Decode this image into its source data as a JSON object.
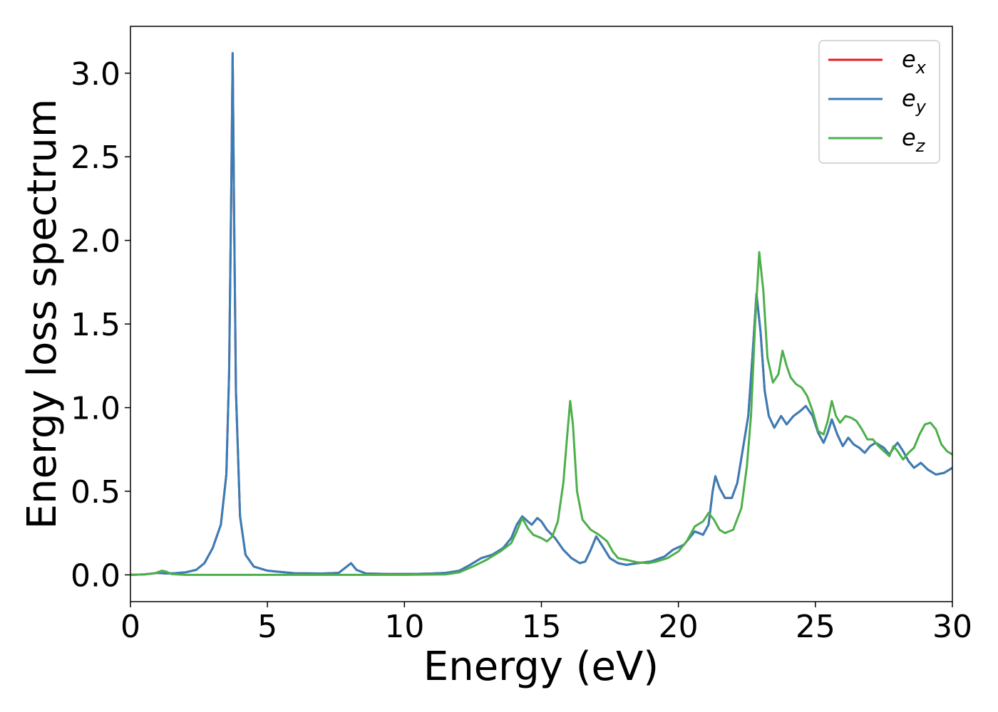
{
  "chart_data": {
    "type": "line",
    "title": "",
    "xlabel": "Energy (eV)",
    "ylabel": "Energy loss spectrum",
    "xlim": [
      0,
      30
    ],
    "ylim": [
      -0.16,
      3.28
    ],
    "xticks": [
      0,
      5,
      10,
      15,
      20,
      25,
      30
    ],
    "xtick_labels": [
      "0",
      "5",
      "10",
      "15",
      "20",
      "25",
      "30"
    ],
    "yticks": [
      0.0,
      0.5,
      1.0,
      1.5,
      2.0,
      2.5,
      3.0
    ],
    "ytick_labels": [
      "0.0",
      "0.5",
      "1.0",
      "1.5",
      "2.0",
      "2.5",
      "3.0"
    ],
    "grid": false,
    "legend_position": "top-right",
    "series": [
      {
        "name": "e_x",
        "legend_base": "e",
        "legend_sub": "x",
        "color": "#e41a1c",
        "points": [
          [
            0,
            0
          ],
          [
            0.5,
            0.003
          ],
          [
            1.0,
            0.012
          ],
          [
            1.3,
            0.008
          ],
          [
            1.6,
            0.01
          ],
          [
            2.0,
            0.015
          ],
          [
            2.4,
            0.03
          ],
          [
            2.7,
            0.07
          ],
          [
            3.0,
            0.16
          ],
          [
            3.3,
            0.3
          ],
          [
            3.5,
            0.6
          ],
          [
            3.6,
            1.2
          ],
          [
            3.68,
            2.3
          ],
          [
            3.73,
            3.12
          ],
          [
            3.78,
            2.2
          ],
          [
            3.85,
            1.1
          ],
          [
            4.0,
            0.35
          ],
          [
            4.2,
            0.12
          ],
          [
            4.5,
            0.05
          ],
          [
            5.0,
            0.025
          ],
          [
            6.0,
            0.01
          ],
          [
            7.0,
            0.008
          ],
          [
            7.6,
            0.012
          ],
          [
            7.9,
            0.05
          ],
          [
            8.05,
            0.07
          ],
          [
            8.25,
            0.03
          ],
          [
            8.6,
            0.008
          ],
          [
            9.5,
            0.005
          ],
          [
            10.5,
            0.006
          ],
          [
            11.0,
            0.008
          ],
          [
            11.5,
            0.012
          ],
          [
            12.0,
            0.025
          ],
          [
            12.4,
            0.06
          ],
          [
            12.8,
            0.1
          ],
          [
            13.2,
            0.12
          ],
          [
            13.6,
            0.16
          ],
          [
            13.9,
            0.22
          ],
          [
            14.1,
            0.3
          ],
          [
            14.3,
            0.35
          ],
          [
            14.5,
            0.32
          ],
          [
            14.65,
            0.3
          ],
          [
            14.85,
            0.34
          ],
          [
            15.0,
            0.32
          ],
          [
            15.2,
            0.27
          ],
          [
            15.5,
            0.22
          ],
          [
            15.8,
            0.15
          ],
          [
            16.1,
            0.1
          ],
          [
            16.4,
            0.07
          ],
          [
            16.6,
            0.08
          ],
          [
            16.8,
            0.15
          ],
          [
            17.0,
            0.23
          ],
          [
            17.2,
            0.18
          ],
          [
            17.5,
            0.1
          ],
          [
            17.8,
            0.07
          ],
          [
            18.1,
            0.06
          ],
          [
            18.5,
            0.07
          ],
          [
            19.0,
            0.08
          ],
          [
            19.5,
            0.11
          ],
          [
            19.8,
            0.15
          ],
          [
            20.2,
            0.18
          ],
          [
            20.6,
            0.26
          ],
          [
            20.9,
            0.24
          ],
          [
            21.1,
            0.3
          ],
          [
            21.25,
            0.5
          ],
          [
            21.35,
            0.59
          ],
          [
            21.5,
            0.52
          ],
          [
            21.7,
            0.46
          ],
          [
            21.95,
            0.46
          ],
          [
            22.15,
            0.55
          ],
          [
            22.35,
            0.75
          ],
          [
            22.55,
            0.95
          ],
          [
            22.7,
            1.3
          ],
          [
            22.85,
            1.68
          ],
          [
            23.0,
            1.45
          ],
          [
            23.15,
            1.1
          ],
          [
            23.3,
            0.95
          ],
          [
            23.5,
            0.88
          ],
          [
            23.75,
            0.95
          ],
          [
            23.95,
            0.9
          ],
          [
            24.2,
            0.95
          ],
          [
            24.45,
            0.98
          ],
          [
            24.65,
            1.01
          ],
          [
            24.9,
            0.95
          ],
          [
            25.1,
            0.85
          ],
          [
            25.3,
            0.79
          ],
          [
            25.45,
            0.85
          ],
          [
            25.6,
            0.93
          ],
          [
            25.8,
            0.84
          ],
          [
            26.0,
            0.77
          ],
          [
            26.2,
            0.82
          ],
          [
            26.4,
            0.78
          ],
          [
            26.6,
            0.76
          ],
          [
            26.8,
            0.73
          ],
          [
            27.0,
            0.77
          ],
          [
            27.2,
            0.79
          ],
          [
            27.5,
            0.76
          ],
          [
            27.7,
            0.72
          ],
          [
            27.9,
            0.77
          ],
          [
            28.0,
            0.79
          ],
          [
            28.2,
            0.74
          ],
          [
            28.4,
            0.68
          ],
          [
            28.6,
            0.64
          ],
          [
            28.85,
            0.67
          ],
          [
            29.1,
            0.63
          ],
          [
            29.4,
            0.6
          ],
          [
            29.7,
            0.61
          ],
          [
            30.0,
            0.64
          ]
        ]
      },
      {
        "name": "e_y",
        "legend_base": "e",
        "legend_sub": "y",
        "color": "#377eb8",
        "points": [
          [
            0,
            0
          ],
          [
            0.5,
            0.003
          ],
          [
            1.0,
            0.012
          ],
          [
            1.3,
            0.008
          ],
          [
            1.6,
            0.01
          ],
          [
            2.0,
            0.015
          ],
          [
            2.4,
            0.03
          ],
          [
            2.7,
            0.07
          ],
          [
            3.0,
            0.16
          ],
          [
            3.3,
            0.3
          ],
          [
            3.5,
            0.6
          ],
          [
            3.6,
            1.2
          ],
          [
            3.68,
            2.3
          ],
          [
            3.73,
            3.12
          ],
          [
            3.78,
            2.2
          ],
          [
            3.85,
            1.1
          ],
          [
            4.0,
            0.35
          ],
          [
            4.2,
            0.12
          ],
          [
            4.5,
            0.05
          ],
          [
            5.0,
            0.025
          ],
          [
            6.0,
            0.01
          ],
          [
            7.0,
            0.008
          ],
          [
            7.6,
            0.012
          ],
          [
            7.9,
            0.05
          ],
          [
            8.05,
            0.07
          ],
          [
            8.25,
            0.03
          ],
          [
            8.6,
            0.008
          ],
          [
            9.5,
            0.005
          ],
          [
            10.5,
            0.006
          ],
          [
            11.0,
            0.008
          ],
          [
            11.5,
            0.012
          ],
          [
            12.0,
            0.025
          ],
          [
            12.4,
            0.06
          ],
          [
            12.8,
            0.1
          ],
          [
            13.2,
            0.12
          ],
          [
            13.6,
            0.16
          ],
          [
            13.9,
            0.22
          ],
          [
            14.1,
            0.3
          ],
          [
            14.3,
            0.35
          ],
          [
            14.5,
            0.32
          ],
          [
            14.65,
            0.3
          ],
          [
            14.85,
            0.34
          ],
          [
            15.0,
            0.32
          ],
          [
            15.2,
            0.27
          ],
          [
            15.5,
            0.22
          ],
          [
            15.8,
            0.15
          ],
          [
            16.1,
            0.1
          ],
          [
            16.4,
            0.07
          ],
          [
            16.6,
            0.08
          ],
          [
            16.8,
            0.15
          ],
          [
            17.0,
            0.23
          ],
          [
            17.2,
            0.18
          ],
          [
            17.5,
            0.1
          ],
          [
            17.8,
            0.07
          ],
          [
            18.1,
            0.06
          ],
          [
            18.5,
            0.07
          ],
          [
            19.0,
            0.08
          ],
          [
            19.5,
            0.11
          ],
          [
            19.8,
            0.15
          ],
          [
            20.2,
            0.18
          ],
          [
            20.6,
            0.26
          ],
          [
            20.9,
            0.24
          ],
          [
            21.1,
            0.3
          ],
          [
            21.25,
            0.5
          ],
          [
            21.35,
            0.59
          ],
          [
            21.5,
            0.52
          ],
          [
            21.7,
            0.46
          ],
          [
            21.95,
            0.46
          ],
          [
            22.15,
            0.55
          ],
          [
            22.35,
            0.75
          ],
          [
            22.55,
            0.95
          ],
          [
            22.7,
            1.3
          ],
          [
            22.85,
            1.68
          ],
          [
            23.0,
            1.45
          ],
          [
            23.15,
            1.1
          ],
          [
            23.3,
            0.95
          ],
          [
            23.5,
            0.88
          ],
          [
            23.75,
            0.95
          ],
          [
            23.95,
            0.9
          ],
          [
            24.2,
            0.95
          ],
          [
            24.45,
            0.98
          ],
          [
            24.65,
            1.01
          ],
          [
            24.9,
            0.95
          ],
          [
            25.1,
            0.85
          ],
          [
            25.3,
            0.79
          ],
          [
            25.45,
            0.85
          ],
          [
            25.6,
            0.93
          ],
          [
            25.8,
            0.84
          ],
          [
            26.0,
            0.77
          ],
          [
            26.2,
            0.82
          ],
          [
            26.4,
            0.78
          ],
          [
            26.6,
            0.76
          ],
          [
            26.8,
            0.73
          ],
          [
            27.0,
            0.77
          ],
          [
            27.2,
            0.79
          ],
          [
            27.5,
            0.76
          ],
          [
            27.7,
            0.72
          ],
          [
            27.9,
            0.77
          ],
          [
            28.0,
            0.79
          ],
          [
            28.2,
            0.74
          ],
          [
            28.4,
            0.68
          ],
          [
            28.6,
            0.64
          ],
          [
            28.85,
            0.67
          ],
          [
            29.1,
            0.63
          ],
          [
            29.4,
            0.6
          ],
          [
            29.7,
            0.61
          ],
          [
            30.0,
            0.64
          ]
        ]
      },
      {
        "name": "e_z",
        "legend_base": "e",
        "legend_sub": "z",
        "color": "#4daf4a",
        "points": [
          [
            0,
            0
          ],
          [
            0.5,
            0.003
          ],
          [
            0.9,
            0.01
          ],
          [
            1.15,
            0.025
          ],
          [
            1.3,
            0.02
          ],
          [
            1.5,
            0.005
          ],
          [
            2.0,
            0.0
          ],
          [
            5.0,
            0.0
          ],
          [
            10.0,
            0.0
          ],
          [
            11.5,
            0.003
          ],
          [
            12.0,
            0.015
          ],
          [
            12.5,
            0.05
          ],
          [
            13.0,
            0.09
          ],
          [
            13.5,
            0.14
          ],
          [
            13.9,
            0.19
          ],
          [
            14.1,
            0.26
          ],
          [
            14.3,
            0.34
          ],
          [
            14.5,
            0.28
          ],
          [
            14.7,
            0.24
          ],
          [
            15.0,
            0.22
          ],
          [
            15.2,
            0.2
          ],
          [
            15.4,
            0.23
          ],
          [
            15.6,
            0.32
          ],
          [
            15.8,
            0.55
          ],
          [
            15.95,
            0.85
          ],
          [
            16.05,
            1.04
          ],
          [
            16.15,
            0.9
          ],
          [
            16.3,
            0.5
          ],
          [
            16.5,
            0.33
          ],
          [
            16.8,
            0.27
          ],
          [
            17.1,
            0.24
          ],
          [
            17.4,
            0.2
          ],
          [
            17.6,
            0.14
          ],
          [
            17.8,
            0.1
          ],
          [
            18.1,
            0.09
          ],
          [
            18.5,
            0.075
          ],
          [
            18.9,
            0.07
          ],
          [
            19.2,
            0.08
          ],
          [
            19.6,
            0.1
          ],
          [
            20.0,
            0.14
          ],
          [
            20.3,
            0.2
          ],
          [
            20.6,
            0.29
          ],
          [
            20.9,
            0.32
          ],
          [
            21.1,
            0.37
          ],
          [
            21.3,
            0.33
          ],
          [
            21.5,
            0.27
          ],
          [
            21.7,
            0.25
          ],
          [
            22.0,
            0.27
          ],
          [
            22.3,
            0.4
          ],
          [
            22.5,
            0.65
          ],
          [
            22.65,
            0.95
          ],
          [
            22.8,
            1.5
          ],
          [
            22.95,
            1.93
          ],
          [
            23.1,
            1.7
          ],
          [
            23.25,
            1.3
          ],
          [
            23.45,
            1.15
          ],
          [
            23.65,
            1.2
          ],
          [
            23.8,
            1.34
          ],
          [
            23.95,
            1.25
          ],
          [
            24.1,
            1.18
          ],
          [
            24.3,
            1.14
          ],
          [
            24.5,
            1.12
          ],
          [
            24.7,
            1.07
          ],
          [
            24.9,
            0.98
          ],
          [
            25.1,
            0.86
          ],
          [
            25.3,
            0.84
          ],
          [
            25.45,
            0.92
          ],
          [
            25.6,
            1.04
          ],
          [
            25.75,
            0.95
          ],
          [
            25.9,
            0.91
          ],
          [
            26.1,
            0.95
          ],
          [
            26.3,
            0.94
          ],
          [
            26.5,
            0.92
          ],
          [
            26.7,
            0.87
          ],
          [
            26.9,
            0.81
          ],
          [
            27.1,
            0.81
          ],
          [
            27.3,
            0.77
          ],
          [
            27.5,
            0.74
          ],
          [
            27.7,
            0.71
          ],
          [
            27.85,
            0.77
          ],
          [
            28.0,
            0.74
          ],
          [
            28.2,
            0.69
          ],
          [
            28.4,
            0.73
          ],
          [
            28.6,
            0.76
          ],
          [
            28.8,
            0.84
          ],
          [
            29.0,
            0.9
          ],
          [
            29.2,
            0.91
          ],
          [
            29.4,
            0.87
          ],
          [
            29.6,
            0.78
          ],
          [
            29.8,
            0.74
          ],
          [
            30.0,
            0.72
          ]
        ]
      }
    ]
  }
}
